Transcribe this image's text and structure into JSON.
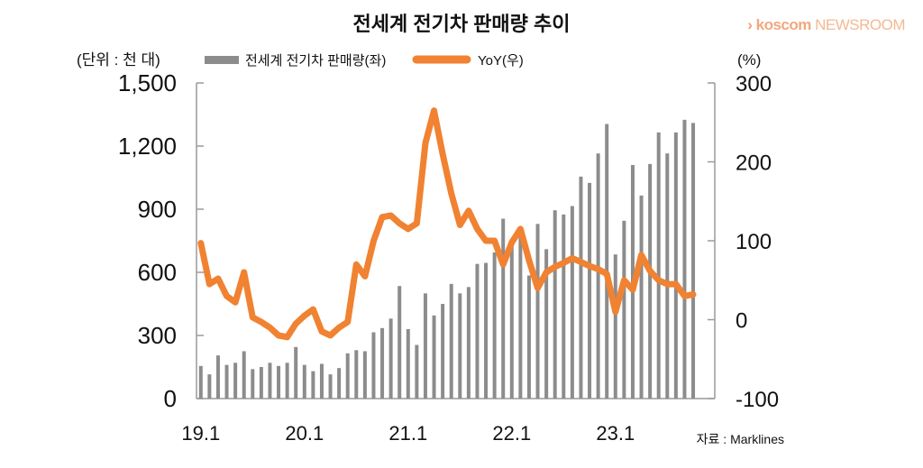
{
  "brand": {
    "mark": "›",
    "name": "koscom",
    "suffix": "NEWSROOM"
  },
  "colors": {
    "bars": "#8c8c8c",
    "line": "#f08232",
    "axis": "#9a9a9a",
    "text": "#111111"
  },
  "chart_data": {
    "type": "bar+line",
    "title": "전세계 전기차 판매량 추이",
    "left_unit": "(단위 : 천 대)",
    "right_unit": "(%)",
    "source": "자료 : Marklines",
    "legend": [
      {
        "label": "전세계 전기차 판매량(좌)",
        "kind": "bar"
      },
      {
        "label": "YoY(우)",
        "kind": "line"
      }
    ],
    "x_ticks": [
      "19.1",
      "20.1",
      "21.1",
      "22.1",
      "23.1"
    ],
    "x_tick_month_index": [
      0,
      12,
      24,
      36,
      48
    ],
    "y_left": {
      "min": 0,
      "max": 1500,
      "ticks": [
        "0",
        "300",
        "600",
        "900",
        "1,200",
        "1,500"
      ],
      "tick_values": [
        0,
        300,
        600,
        900,
        1200,
        1500
      ]
    },
    "y_right": {
      "min": -100,
      "max": 300,
      "ticks": [
        "-100",
        "0",
        "100",
        "200",
        "300"
      ],
      "tick_values": [
        -100,
        0,
        100,
        200,
        300
      ]
    },
    "months": 60,
    "bars": [
      155,
      115,
      205,
      160,
      170,
      225,
      140,
      150,
      170,
      155,
      170,
      245,
      160,
      130,
      165,
      115,
      145,
      215,
      230,
      225,
      315,
      335,
      380,
      535,
      330,
      255,
      500,
      395,
      450,
      545,
      500,
      530,
      640,
      645,
      695,
      855,
      745,
      780,
      585,
      830,
      710,
      895,
      875,
      915,
      1055,
      1025,
      1165,
      1305,
      685,
      845,
      1110,
      965,
      1115,
      1265,
      1165,
      1265,
      1325,
      1310
    ],
    "yoy": [
      97,
      45,
      52,
      30,
      22,
      60,
      3,
      -3,
      -10,
      -20,
      -22,
      -5,
      5,
      13,
      -15,
      -20,
      -10,
      -3,
      70,
      55,
      100,
      130,
      132,
      122,
      115,
      122,
      224,
      265,
      210,
      160,
      120,
      138,
      115,
      100,
      100,
      70,
      98,
      115,
      75,
      40,
      60,
      67,
      72,
      78,
      73,
      68,
      64,
      58,
      10,
      50,
      38,
      82,
      62,
      50,
      45,
      45,
      30,
      32
    ]
  }
}
